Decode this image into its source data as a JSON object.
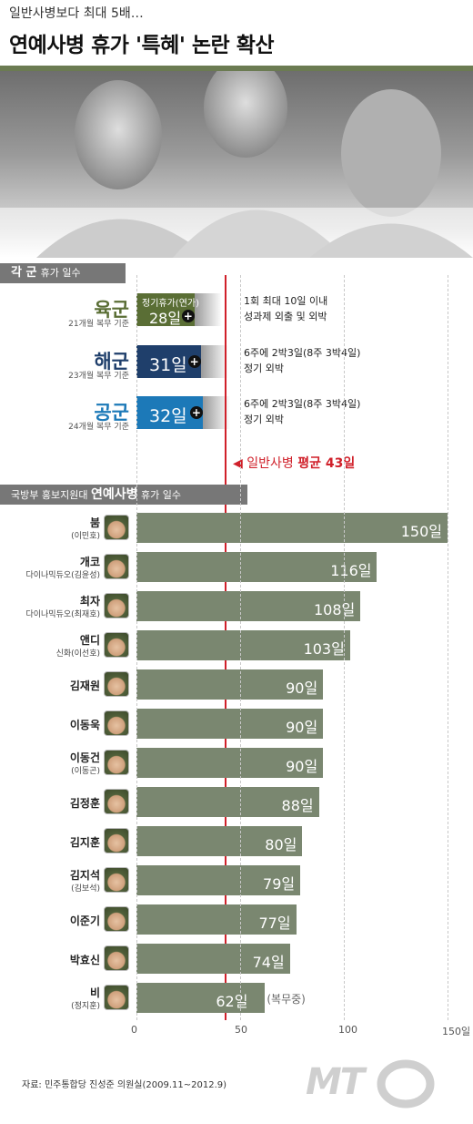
{
  "header": {
    "subtitle": "일반사병보다 최대 5배…",
    "title": "연예사병 휴가 '특혜' 논란 확산"
  },
  "section1": {
    "tag_bold": "각 군",
    "tag_rest": "휴가 일수"
  },
  "branches": [
    {
      "name": "육군",
      "sub": "21개월 복무 기준",
      "value_text": "28일",
      "top_label": "정기휴가(연가)",
      "desc1": "1회 최대 10일 이내",
      "desc2": "성과제 외출 및 외박",
      "color": "#5a6e35"
    },
    {
      "name": "해군",
      "sub": "23개월 복무 기준",
      "value_text": "31일",
      "top_label": "",
      "desc1": "6주에 2박3일(8주 3박4일)",
      "desc2": "정기 외박",
      "color": "#1f3f6b"
    },
    {
      "name": "공군",
      "sub": "24개월 복무 기준",
      "value_text": "32일",
      "top_label": "",
      "desc1": "6주에 2박3일(8주 3박4일)",
      "desc2": "정기 외박",
      "color": "#1c79b8"
    }
  ],
  "average": {
    "label_prefix": "일반사병",
    "label_bold": "평균 43일",
    "color": "#d0202a"
  },
  "section2": {
    "tag_prefix": "국방부 홍보지원대",
    "tag_bold": "연예사병",
    "tag_rest": "휴가 일수"
  },
  "plus_symbol": "+",
  "arrow_symbol": "◀",
  "chart_data": {
    "type": "bar",
    "categories": [
      "붐",
      "개코",
      "최자",
      "앤디",
      "김재원",
      "이동욱",
      "이동건",
      "김정훈",
      "김지훈",
      "김지석",
      "이준기",
      "박효신",
      "비"
    ],
    "subnames": [
      "(이민호)",
      "다이나믹듀오(김윤성)",
      "다이나믹듀오(최재호)",
      "신화(이선호)",
      "",
      "",
      "(이동곤)",
      "",
      "",
      "(김보석)",
      "",
      "",
      "(정지훈)"
    ],
    "values": [
      150,
      116,
      108,
      103,
      90,
      90,
      90,
      88,
      80,
      79,
      77,
      74,
      62
    ],
    "value_labels": [
      "150일",
      "116일",
      "108일",
      "103일",
      "90일",
      "90일",
      "90일",
      "88일",
      "80일",
      "79일",
      "77일",
      "74일",
      "62일"
    ],
    "note_last": "(복무중)",
    "xlim": [
      0,
      150
    ],
    "xticks": [
      "0",
      "50",
      "100",
      "150일"
    ],
    "branch_values": [
      28,
      31,
      32
    ],
    "average_value": 43,
    "bar_color": "#7a8770"
  },
  "source": "자료: 민주통합당 진성준 의원실(2009.11~2012.9)",
  "logo": "MT"
}
